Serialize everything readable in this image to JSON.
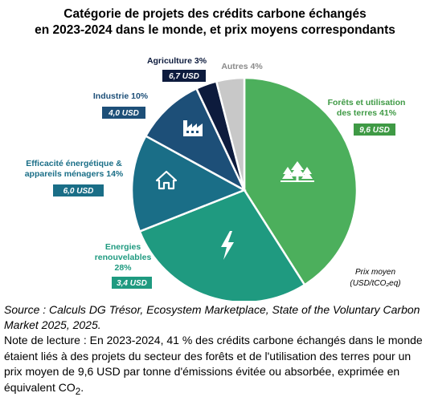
{
  "title_line1": "Catégorie de projets des crédits carbone échangés",
  "title_line2": "en 2023-2024 dans le monde, et prix moyens correspondants",
  "price_note_line1": "Prix moyen",
  "price_note_line2": "(USD/tCO₂eq)",
  "source": "Source : Calculs DG Trésor, Ecosystem Marketplace, State of the Voluntary Carbon Market 2025, 2025.",
  "note_main": "Note de lecture : En 2023-2024, 41 % des crédits carbone échangés dans le monde étaient liés à des projets du secteur des forêts et de l'utilisation des terres pour un prix moyen de 9,6 USD par tonne d'émissions évitée ou absorbée, exprimée en équivalent CO",
  "note_sub": "2",
  "note_end": ".",
  "chart_data": {
    "type": "pie",
    "title": "Catégorie de projets des crédits carbone échangés en 2023-2024 dans le monde, et prix moyens correspondants",
    "unit_share": "%",
    "unit_price": "USD/tCO₂eq",
    "slices": [
      {
        "name": "Forêts et utilisation des terres",
        "label_lines": [
          "Forêts et utilisation",
          "des terres 41%"
        ],
        "share": 41,
        "price": "9,6 USD",
        "color": "#4caf5c",
        "label_color": "#3f9a45",
        "icon": "trees-icon"
      },
      {
        "name": "Energies renouvelables",
        "label_lines": [
          "Energies",
          "renouvelables",
          "28%"
        ],
        "share": 28,
        "price": "3,4 USD",
        "color": "#1f9a80",
        "label_color": "#1f9a80",
        "icon": "lightning-icon"
      },
      {
        "name": "Efficacité énergétique & appareils ménagers",
        "label_lines": [
          "Efficacité énergétique &",
          "appareils ménagers 14%"
        ],
        "share": 14,
        "price": "6,0 USD",
        "color": "#1a6e87",
        "label_color": "#1a6e87",
        "icon": "house-icon"
      },
      {
        "name": "Industrie",
        "label_lines": [
          "Industrie 10%"
        ],
        "share": 10,
        "price": "4,0 USD",
        "color": "#1d4f78",
        "label_color": "#1d4f78",
        "icon": "factory-icon"
      },
      {
        "name": "Agriculture",
        "label_lines": [
          "Agriculture  3%"
        ],
        "share": 3,
        "price": "6,7 USD",
        "color": "#0d1b3d",
        "label_color": "#0d1b3d",
        "icon": ""
      },
      {
        "name": "Autres",
        "label_lines": [
          "Autres 4%"
        ],
        "share": 4,
        "price": "",
        "color": "#c8c8c8",
        "label_color": "#8a8a8a",
        "icon": ""
      }
    ]
  }
}
